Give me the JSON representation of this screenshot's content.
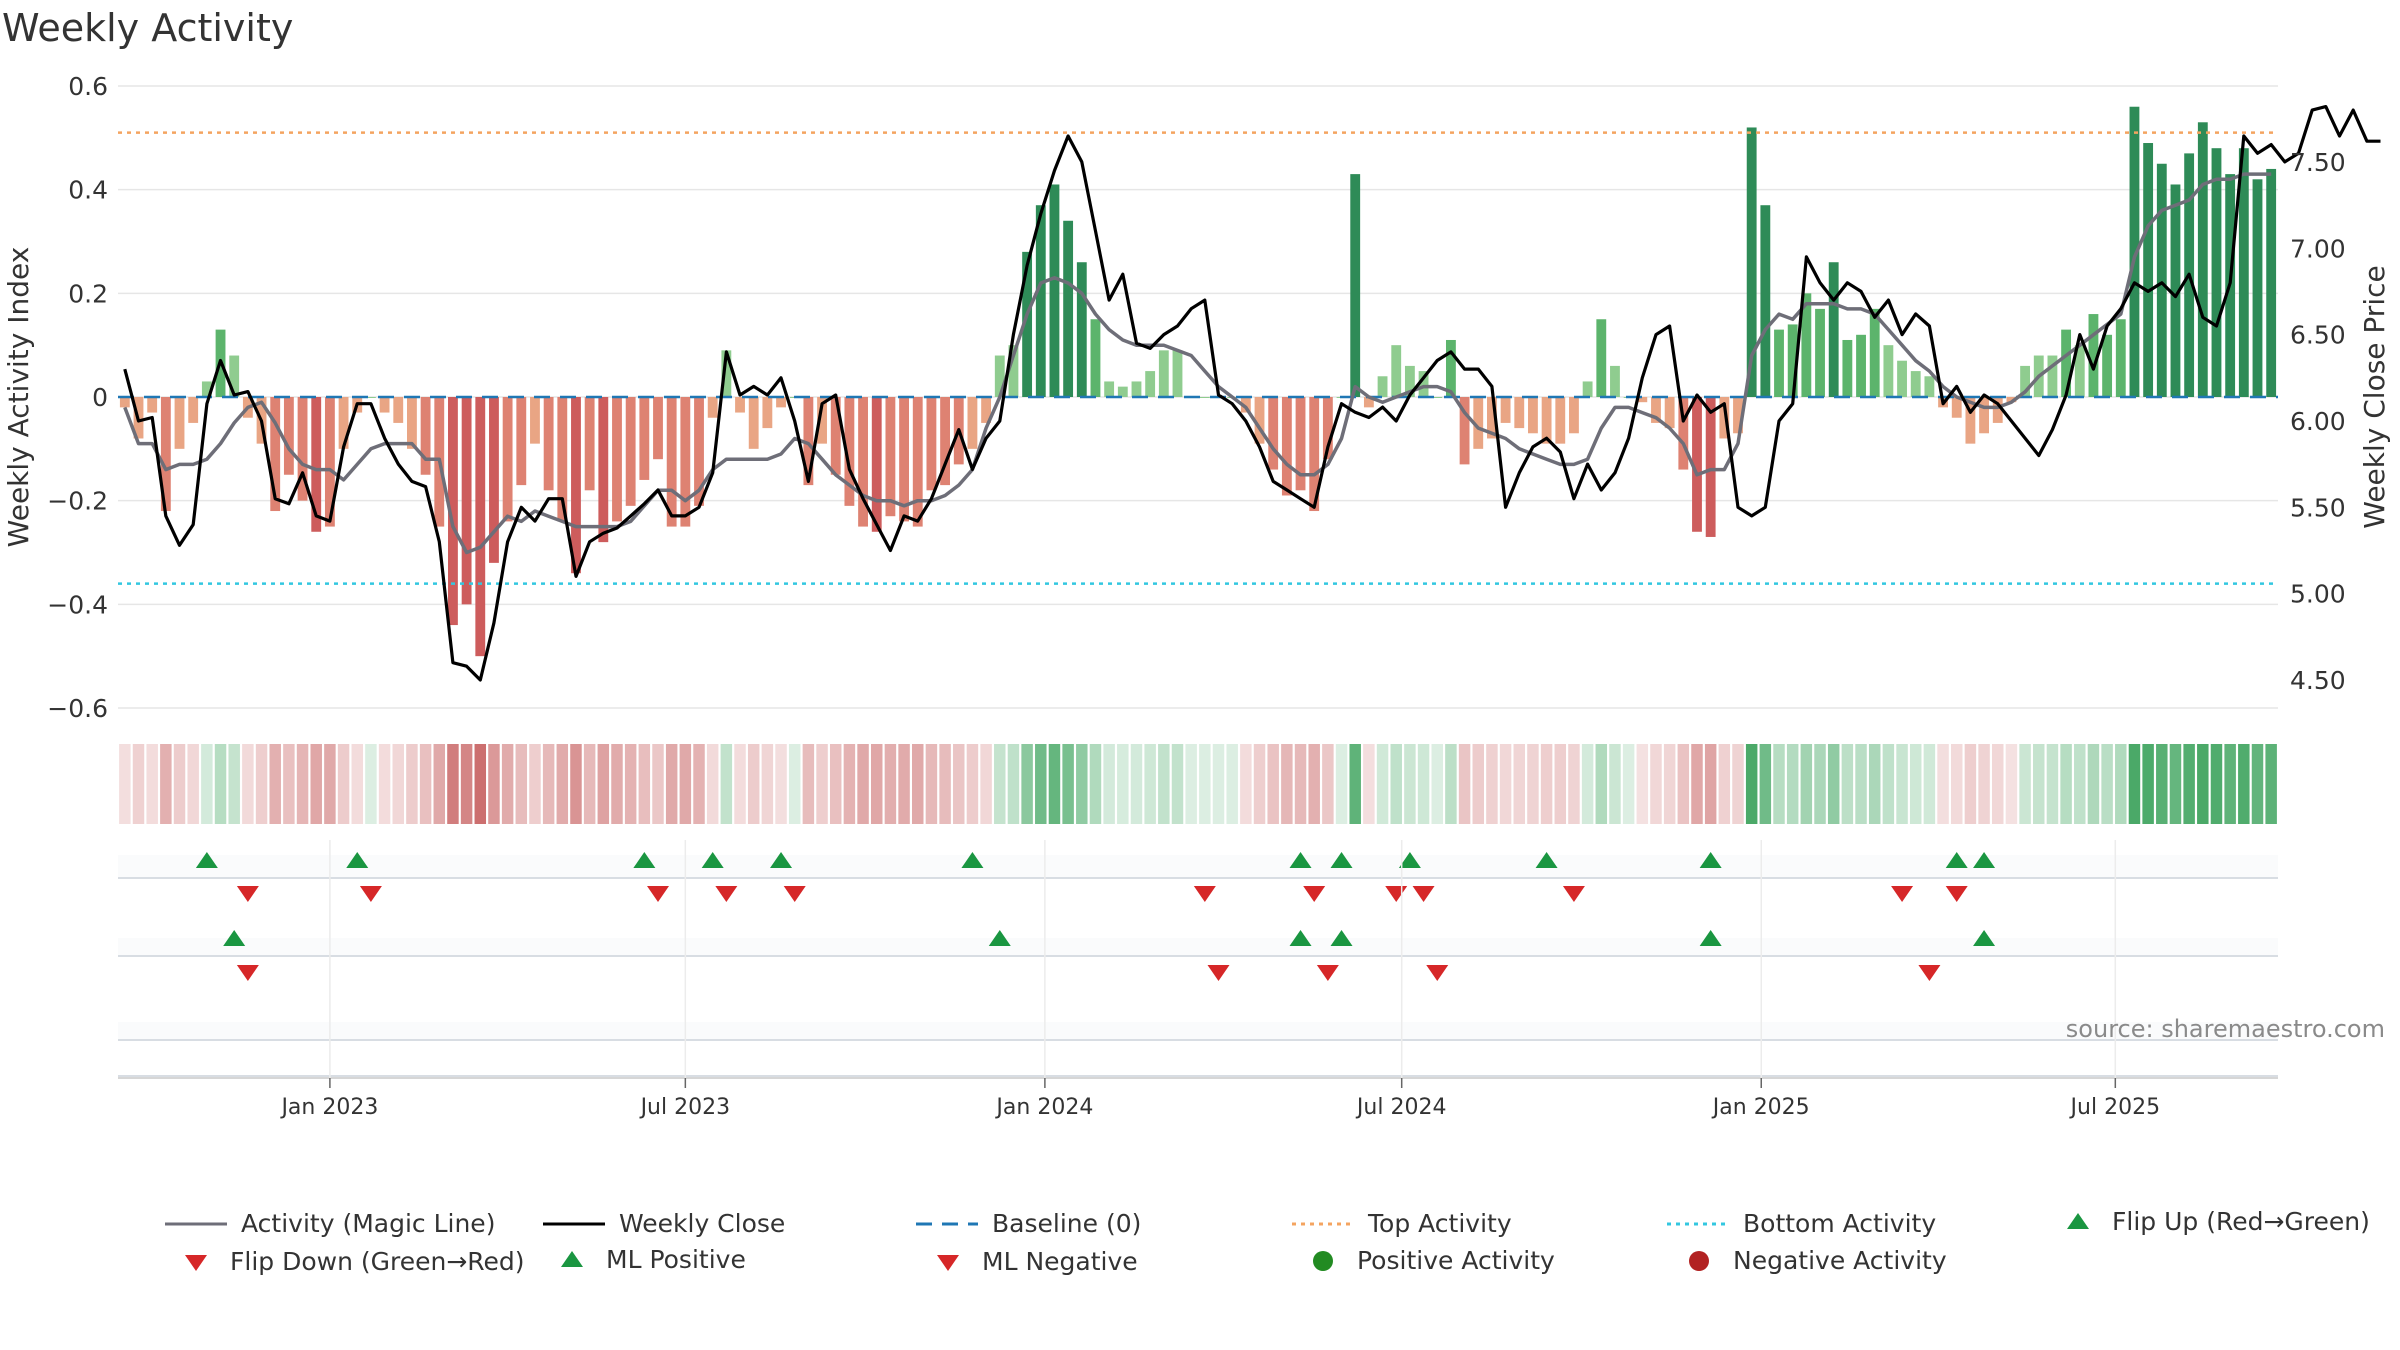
{
  "title": "Weekly Activity",
  "source": "source: sharemaestro.com",
  "colors": {
    "pos_dark": "#2e8b57",
    "pos_mid": "#5cb46c",
    "pos_light": "#8fcc8f",
    "neg_dark": "#cd5c5c",
    "neg_mid": "#de8272",
    "neg_light": "#e9a584",
    "magic_line": "#6e6e78",
    "close_line": "#000000",
    "baseline": "#1f77b4",
    "top_line": "#f4a460",
    "bottom_line": "#33c7e0",
    "flip_up": "#1a9641",
    "flip_down": "#d62728",
    "positive_dot": "#228b22",
    "negative_dot": "#b22222"
  },
  "legend": [
    {
      "key": "magic",
      "label": "Activity (Magic Line)",
      "icon": "line-solid-gray"
    },
    {
      "key": "close",
      "label": "Weekly Close",
      "icon": "line-solid-black"
    },
    {
      "key": "baseline",
      "label": "Baseline (0)",
      "icon": "line-dashed-blue"
    },
    {
      "key": "top",
      "label": "Top Activity",
      "icon": "line-dotted-orange"
    },
    {
      "key": "bottom",
      "label": "Bottom Activity",
      "icon": "line-dotted-cyan"
    },
    {
      "key": "flipup",
      "label": "Flip Up (Red→Green)",
      "icon": "triangle-up-green"
    },
    {
      "key": "flipdown",
      "label": "Flip Down (Green→Red)",
      "icon": "triangle-down-red"
    },
    {
      "key": "mlpos",
      "label": "ML Positive",
      "icon": "triangle-up-green"
    },
    {
      "key": "mlneg",
      "label": "ML Negative",
      "icon": "triangle-down-red"
    },
    {
      "key": "posdot",
      "label": "Positive Activity",
      "icon": "dot-green"
    },
    {
      "key": "negdot",
      "label": "Negative Activity",
      "icon": "dot-red"
    }
  ],
  "chart_data": {
    "type": "bar",
    "title": "Weekly Activity",
    "ylabel": "Weekly Activity Index",
    "y2label": "Weekly Close Price",
    "ylim": [
      -0.6,
      0.6
    ],
    "yticks": [
      0.6,
      0.4,
      0.2,
      0,
      -0.2,
      -0.4,
      -0.6
    ],
    "ytick_labels": [
      "0.6",
      "0.4",
      "0.2",
      "0",
      "−0.2",
      "−0.4",
      "−0.6"
    ],
    "y2lim": [
      4.35,
      7.85
    ],
    "y2ticks": [
      7.5,
      7.0,
      6.5,
      6.0,
      5.5,
      5.0,
      4.5
    ],
    "y2tick_labels": [
      "7.50",
      "7.00",
      "6.50",
      "6.00",
      "5.50",
      "5.00",
      "4.50"
    ],
    "x_range_weeks": [
      0,
      157
    ],
    "xticks": [
      {
        "label": "Jan 2023",
        "week": 15
      },
      {
        "label": "Jul 2023",
        "week": 41
      },
      {
        "label": "Jan 2024",
        "week": 67.3
      },
      {
        "label": "Jul 2024",
        "week": 93.4
      },
      {
        "label": "Jan 2025",
        "week": 119.7
      },
      {
        "label": "Jul 2025",
        "week": 145.6
      }
    ],
    "top_activity": 0.51,
    "bottom_activity": -0.36,
    "baseline": 0,
    "activity": [
      -0.02,
      -0.08,
      -0.03,
      -0.22,
      -0.1,
      -0.05,
      0.03,
      0.13,
      0.08,
      -0.04,
      -0.09,
      -0.22,
      -0.15,
      -0.2,
      -0.26,
      -0.25,
      -0.1,
      -0.03,
      0.0,
      -0.03,
      -0.05,
      -0.1,
      -0.15,
      -0.25,
      -0.44,
      -0.4,
      -0.5,
      -0.32,
      -0.24,
      -0.17,
      -0.09,
      -0.18,
      -0.24,
      -0.34,
      -0.18,
      -0.28,
      -0.24,
      -0.21,
      -0.16,
      -0.12,
      -0.25,
      -0.25,
      -0.21,
      -0.04,
      0.09,
      -0.03,
      -0.1,
      -0.06,
      -0.02,
      0.0,
      -0.17,
      -0.09,
      -0.15,
      -0.21,
      -0.25,
      -0.26,
      -0.23,
      -0.24,
      -0.25,
      -0.18,
      -0.17,
      -0.13,
      -0.1,
      -0.05,
      0.08,
      0.1,
      0.28,
      0.37,
      0.41,
      0.34,
      0.26,
      0.15,
      0.03,
      0.02,
      0.03,
      0.05,
      0.09,
      0.09,
      0.0,
      0.0,
      0.0,
      0.0,
      -0.03,
      -0.09,
      -0.14,
      -0.19,
      -0.18,
      -0.22,
      -0.12,
      0.0,
      0.43,
      -0.02,
      0.04,
      0.1,
      0.06,
      0.05,
      0.0,
      0.11,
      -0.13,
      -0.1,
      -0.08,
      -0.05,
      -0.06,
      -0.07,
      -0.09,
      -0.09,
      -0.07,
      0.03,
      0.15,
      0.06,
      0.0,
      -0.01,
      -0.05,
      -0.06,
      -0.14,
      -0.26,
      -0.27,
      -0.08,
      -0.07,
      0.52,
      0.37,
      0.13,
      0.14,
      0.2,
      0.17,
      0.26,
      0.11,
      0.12,
      0.17,
      0.1,
      0.07,
      0.05,
      0.04,
      -0.02,
      -0.04,
      -0.09,
      -0.07,
      -0.05,
      -0.01,
      0.06,
      0.08,
      0.08,
      0.13,
      0.1,
      0.16,
      0.12,
      0.15,
      0.56,
      0.49,
      0.45,
      0.41,
      0.47,
      0.53,
      0.48,
      0.43,
      0.48,
      0.42,
      0.44
    ],
    "magic_line": [
      -0.02,
      -0.09,
      -0.09,
      -0.14,
      -0.13,
      -0.13,
      -0.12,
      -0.09,
      -0.05,
      -0.02,
      -0.01,
      -0.05,
      -0.1,
      -0.13,
      -0.14,
      -0.14,
      -0.16,
      -0.13,
      -0.1,
      -0.09,
      -0.09,
      -0.09,
      -0.12,
      -0.12,
      -0.25,
      -0.3,
      -0.29,
      -0.26,
      -0.23,
      -0.24,
      -0.22,
      -0.23,
      -0.24,
      -0.25,
      -0.25,
      -0.25,
      -0.25,
      -0.24,
      -0.21,
      -0.18,
      -0.18,
      -0.2,
      -0.18,
      -0.14,
      -0.12,
      -0.12,
      -0.12,
      -0.12,
      -0.11,
      -0.08,
      -0.09,
      -0.12,
      -0.15,
      -0.17,
      -0.19,
      -0.2,
      -0.2,
      -0.21,
      -0.2,
      -0.2,
      -0.19,
      -0.17,
      -0.14,
      -0.06,
      0.0,
      0.08,
      0.16,
      0.22,
      0.23,
      0.22,
      0.2,
      0.16,
      0.13,
      0.11,
      0.1,
      0.1,
      0.1,
      0.09,
      0.08,
      0.05,
      0.02,
      0.0,
      -0.02,
      -0.06,
      -0.1,
      -0.13,
      -0.15,
      -0.15,
      -0.13,
      -0.08,
      0.02,
      0.0,
      -0.01,
      0.0,
      0.01,
      0.02,
      0.02,
      0.01,
      -0.03,
      -0.06,
      -0.07,
      -0.08,
      -0.1,
      -0.11,
      -0.12,
      -0.13,
      -0.13,
      -0.12,
      -0.06,
      -0.02,
      -0.02,
      -0.03,
      -0.04,
      -0.06,
      -0.09,
      -0.15,
      -0.14,
      -0.14,
      -0.09,
      0.08,
      0.13,
      0.16,
      0.15,
      0.18,
      0.18,
      0.18,
      0.17,
      0.17,
      0.16,
      0.13,
      0.1,
      0.07,
      0.05,
      0.02,
      0.0,
      -0.01,
      -0.02,
      -0.02,
      -0.01,
      0.01,
      0.04,
      0.06,
      0.08,
      0.1,
      0.12,
      0.14,
      0.16,
      0.27,
      0.33,
      0.36,
      0.37,
      0.38,
      0.41,
      0.42,
      0.42,
      0.43,
      0.43,
      0.43
    ],
    "weekly_close": [
      6.3,
      6.0,
      6.02,
      5.45,
      5.28,
      5.4,
      6.1,
      6.35,
      6.15,
      6.17,
      6.0,
      5.55,
      5.52,
      5.7,
      5.45,
      5.42,
      5.85,
      6.1,
      6.1,
      5.9,
      5.75,
      5.65,
      5.62,
      5.3,
      4.6,
      4.58,
      4.5,
      4.83,
      5.3,
      5.5,
      5.42,
      5.55,
      5.55,
      5.1,
      5.3,
      5.35,
      5.38,
      5.45,
      5.52,
      5.6,
      5.45,
      5.45,
      5.5,
      5.7,
      6.4,
      6.15,
      6.2,
      6.15,
      6.25,
      6.0,
      5.65,
      6.1,
      6.15,
      5.72,
      5.55,
      5.4,
      5.25,
      5.45,
      5.42,
      5.55,
      5.75,
      5.95,
      5.72,
      5.9,
      6.0,
      6.5,
      6.9,
      7.2,
      7.45,
      7.65,
      7.5,
      7.1,
      6.7,
      6.85,
      6.45,
      6.42,
      6.5,
      6.55,
      6.65,
      6.7,
      6.15,
      6.1,
      6.0,
      5.85,
      5.65,
      5.6,
      5.55,
      5.5,
      5.85,
      6.1,
      6.05,
      6.02,
      6.08,
      6.0,
      6.15,
      6.25,
      6.35,
      6.4,
      6.3,
      6.3,
      6.2,
      5.5,
      5.7,
      5.85,
      5.9,
      5.82,
      5.55,
      5.75,
      5.6,
      5.7,
      5.9,
      6.25,
      6.5,
      6.55,
      6.0,
      6.15,
      6.05,
      6.1,
      5.5,
      5.45,
      5.5,
      6.0,
      6.1,
      6.95,
      6.8,
      6.7,
      6.8,
      6.75,
      6.6,
      6.7,
      6.5,
      6.62,
      6.55,
      6.1,
      6.2,
      6.05,
      6.15,
      6.1,
      6.0,
      5.9,
      5.8,
      5.95,
      6.15,
      6.5,
      6.3,
      6.55,
      6.65,
      6.8,
      6.75,
      6.8,
      6.72,
      6.85,
      6.6,
      6.55,
      6.8,
      7.65,
      7.55,
      7.6,
      7.5,
      7.55,
      7.8,
      7.82,
      7.65,
      7.8,
      7.62,
      7.62
    ],
    "flip_up": [
      6,
      17,
      38,
      43,
      48,
      62,
      86,
      89,
      94,
      104,
      116,
      134,
      136
    ],
    "flip_down": [
      9,
      18,
      39,
      44,
      49,
      79,
      87,
      93,
      95,
      106,
      130,
      134
    ],
    "ml_positive": [
      8,
      64,
      86,
      89,
      116,
      136
    ],
    "ml_negative": [
      9,
      80,
      88,
      96,
      132
    ]
  }
}
